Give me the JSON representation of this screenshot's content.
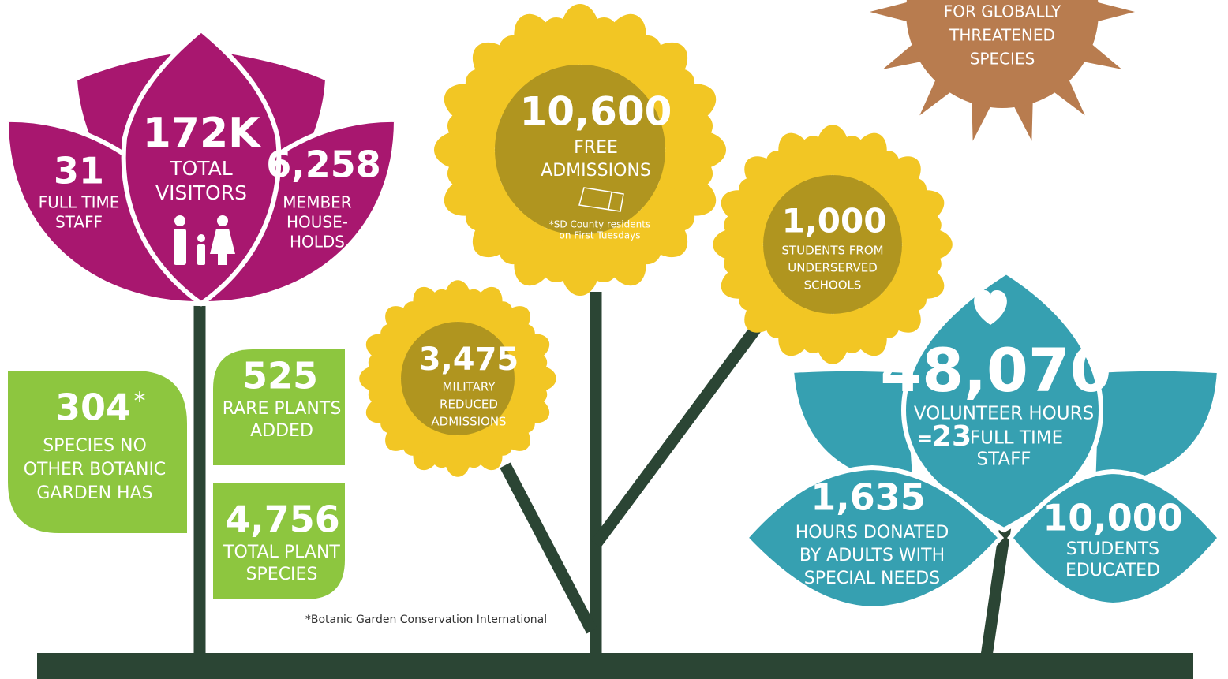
{
  "sun": {
    "lines": [
      "FOR GLOBALLY",
      "THREATENED",
      "SPECIES"
    ]
  },
  "lotus": {
    "staff": {
      "value": "31",
      "lines": [
        "FULL TIME",
        "STAFF"
      ]
    },
    "visitors": {
      "value": "172K",
      "lines": [
        "TOTAL",
        "VISITORS"
      ]
    },
    "households": {
      "value": "6,258",
      "lines": [
        "MEMBER",
        "HOUSE-",
        "HOLDS"
      ]
    }
  },
  "leaves": {
    "unique_species": {
      "value": "304",
      "mark": "*",
      "lines": [
        "SPECIES NO",
        "OTHER BOTANIC",
        "GARDEN HAS"
      ]
    },
    "rare_plants": {
      "value": "525",
      "lines": [
        "RARE PLANTS",
        "ADDED"
      ]
    },
    "plant_species": {
      "value": "4,756",
      "lines": [
        "TOTAL PLANT",
        "SPECIES"
      ]
    }
  },
  "sunflowers": {
    "free_admissions": {
      "value": "10,600",
      "lines": [
        "FREE",
        "ADMISSIONS"
      ],
      "note": [
        "*SD County residents",
        "on First Tuesdays"
      ]
    },
    "students": {
      "value": "1,000",
      "lines": [
        "STUDENTS FROM",
        "UNDERSERVED",
        "SCHOOLS"
      ]
    },
    "military": {
      "value": "3,475",
      "lines": [
        "MILITARY",
        "REDUCED",
        "ADMISSIONS"
      ]
    }
  },
  "volunteers": {
    "hours": {
      "value": "48,070",
      "lines": [
        "VOLUNTEER HOURS"
      ],
      "equals": "=",
      "staff_value": "23",
      "staff_lines": [
        "FULL TIME",
        "STAFF"
      ]
    },
    "special_needs": {
      "value": "1,635",
      "lines": [
        "HOURS DONATED",
        "BY ADULTS WITH",
        "SPECIAL NEEDS"
      ]
    },
    "students": {
      "value": "10,000",
      "lines": [
        "STUDENTS",
        "EDUCATED"
      ]
    }
  },
  "footnote": "*Botanic Garden Conservation International"
}
